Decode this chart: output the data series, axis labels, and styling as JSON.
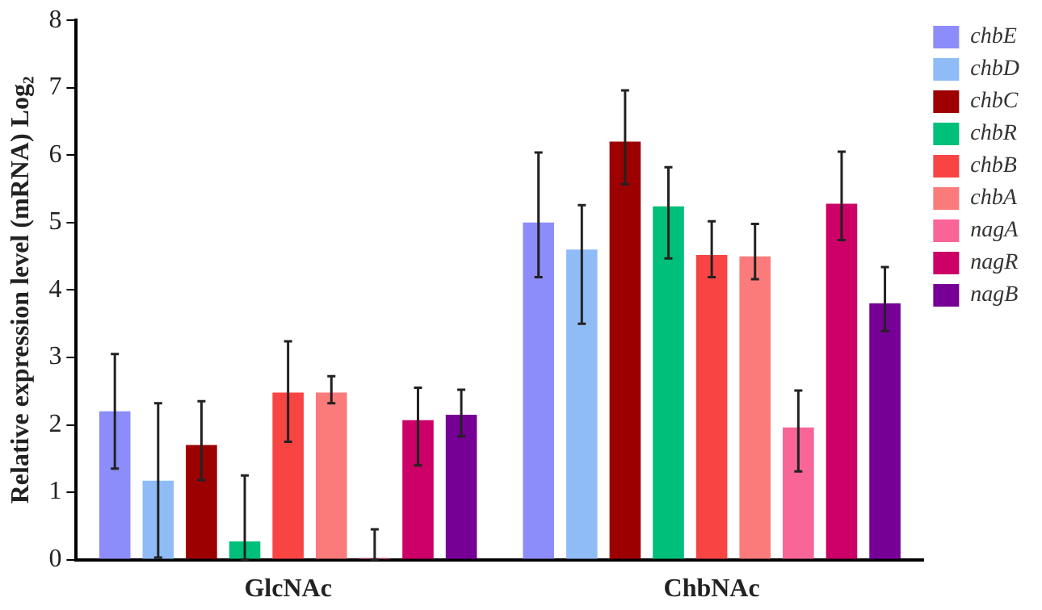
{
  "chart_data": {
    "type": "bar",
    "ylabel": "Relative expression level (mRNA) Log₂",
    "categories": [
      "GlcNAc",
      "ChbNAc"
    ],
    "ylim": [
      0,
      8
    ],
    "yticks": [
      0,
      1,
      2,
      3,
      4,
      5,
      6,
      7,
      8
    ],
    "grid": false,
    "legend": "right",
    "series": [
      {
        "name": "chbE",
        "color": "#8c8cfa",
        "values": [
          2.2,
          5.0
        ],
        "errors": [
          [
            1.35,
            3.05
          ],
          [
            4.19,
            6.04
          ]
        ]
      },
      {
        "name": "chbD",
        "color": "#8fbcf7",
        "values": [
          1.17,
          4.6
        ],
        "errors": [
          [
            0.03,
            2.32
          ],
          [
            3.5,
            5.26
          ]
        ]
      },
      {
        "name": "chbC",
        "color": "#9c0000",
        "values": [
          1.7,
          6.2
        ],
        "errors": [
          [
            1.18,
            2.35
          ],
          [
            5.57,
            6.96
          ]
        ]
      },
      {
        "name": "chbR",
        "color": "#00bf7a",
        "values": [
          0.27,
          5.24
        ],
        "errors": [
          [
            0,
            1.25
          ],
          [
            4.47,
            5.82
          ]
        ]
      },
      {
        "name": "chbB",
        "color": "#f94444",
        "values": [
          2.48,
          4.52
        ],
        "errors": [
          [
            1.75,
            3.24
          ],
          [
            4.19,
            5.02
          ]
        ]
      },
      {
        "name": "chbA",
        "color": "#fb7b7b",
        "values": [
          2.48,
          4.5
        ],
        "errors": [
          [
            2.32,
            2.72
          ],
          [
            4.16,
            4.98
          ]
        ]
      },
      {
        "name": "nagA",
        "color": "#f86596",
        "values": [
          0,
          1.96
        ],
        "errors": [
          [
            0,
            0.45
          ],
          [
            1.31,
            2.51
          ]
        ]
      },
      {
        "name": "nagR",
        "color": "#cc0066",
        "values": [
          2.07,
          5.28
        ],
        "errors": [
          [
            1.4,
            2.55
          ],
          [
            4.74,
            6.05
          ]
        ]
      },
      {
        "name": "nagB",
        "color": "#760096",
        "values": [
          2.15,
          3.8
        ],
        "errors": [
          [
            1.83,
            2.52
          ],
          [
            3.39,
            4.34
          ]
        ]
      }
    ]
  }
}
